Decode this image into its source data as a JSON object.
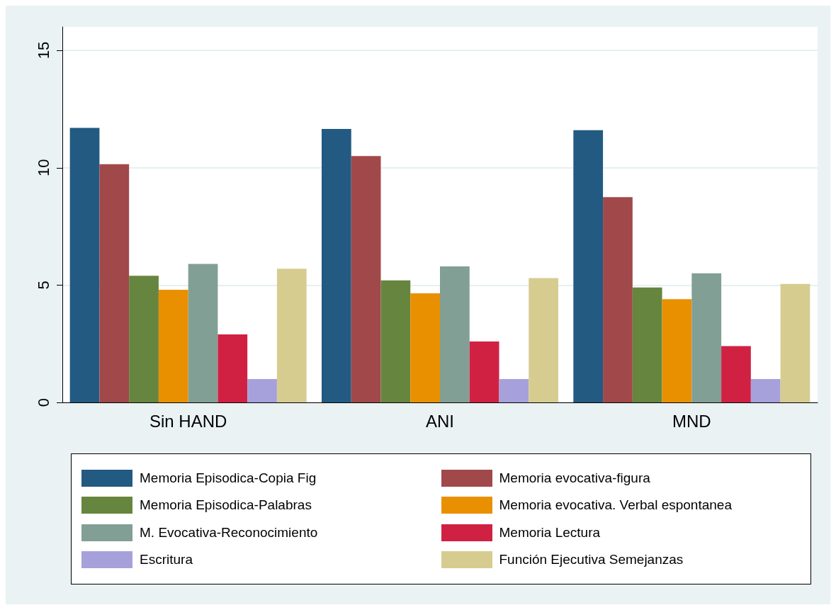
{
  "chart_data": {
    "type": "bar",
    "categories": [
      "Sin HAND",
      "ANI",
      "MND"
    ],
    "series": [
      {
        "name": "Memoria Episodica-Copia Fig",
        "color": "#225a82",
        "values": [
          11.7,
          11.65,
          11.6
        ]
      },
      {
        "name": "Memoria evocativa-figura",
        "color": "#a1484b",
        "values": [
          10.15,
          10.5,
          8.75
        ]
      },
      {
        "name": "Memoria Episodica-Palabras",
        "color": "#66853e",
        "values": [
          5.4,
          5.2,
          4.9
        ]
      },
      {
        "name": "Memoria evocativa. Verbal espontanea",
        "color": "#e99000",
        "values": [
          4.8,
          4.65,
          4.4
        ]
      },
      {
        "name": "M. Evocativa-Reconocimiento",
        "color": "#829f95",
        "values": [
          5.9,
          5.8,
          5.5
        ]
      },
      {
        "name": "Memoria Lectura",
        "color": "#d12143",
        "values": [
          2.9,
          2.6,
          2.4
        ]
      },
      {
        "name": "Escritura",
        "color": "#a6a1db",
        "values": [
          1,
          1,
          1
        ]
      },
      {
        "name": "Función Ejecutiva Semejanzas",
        "color": "#d6cc90",
        "values": [
          5.7,
          5.3,
          5.05
        ]
      }
    ],
    "ylim": [
      0,
      16
    ],
    "yticks": [
      0,
      5,
      10,
      15
    ],
    "grid": "y",
    "legend": "bottom"
  }
}
